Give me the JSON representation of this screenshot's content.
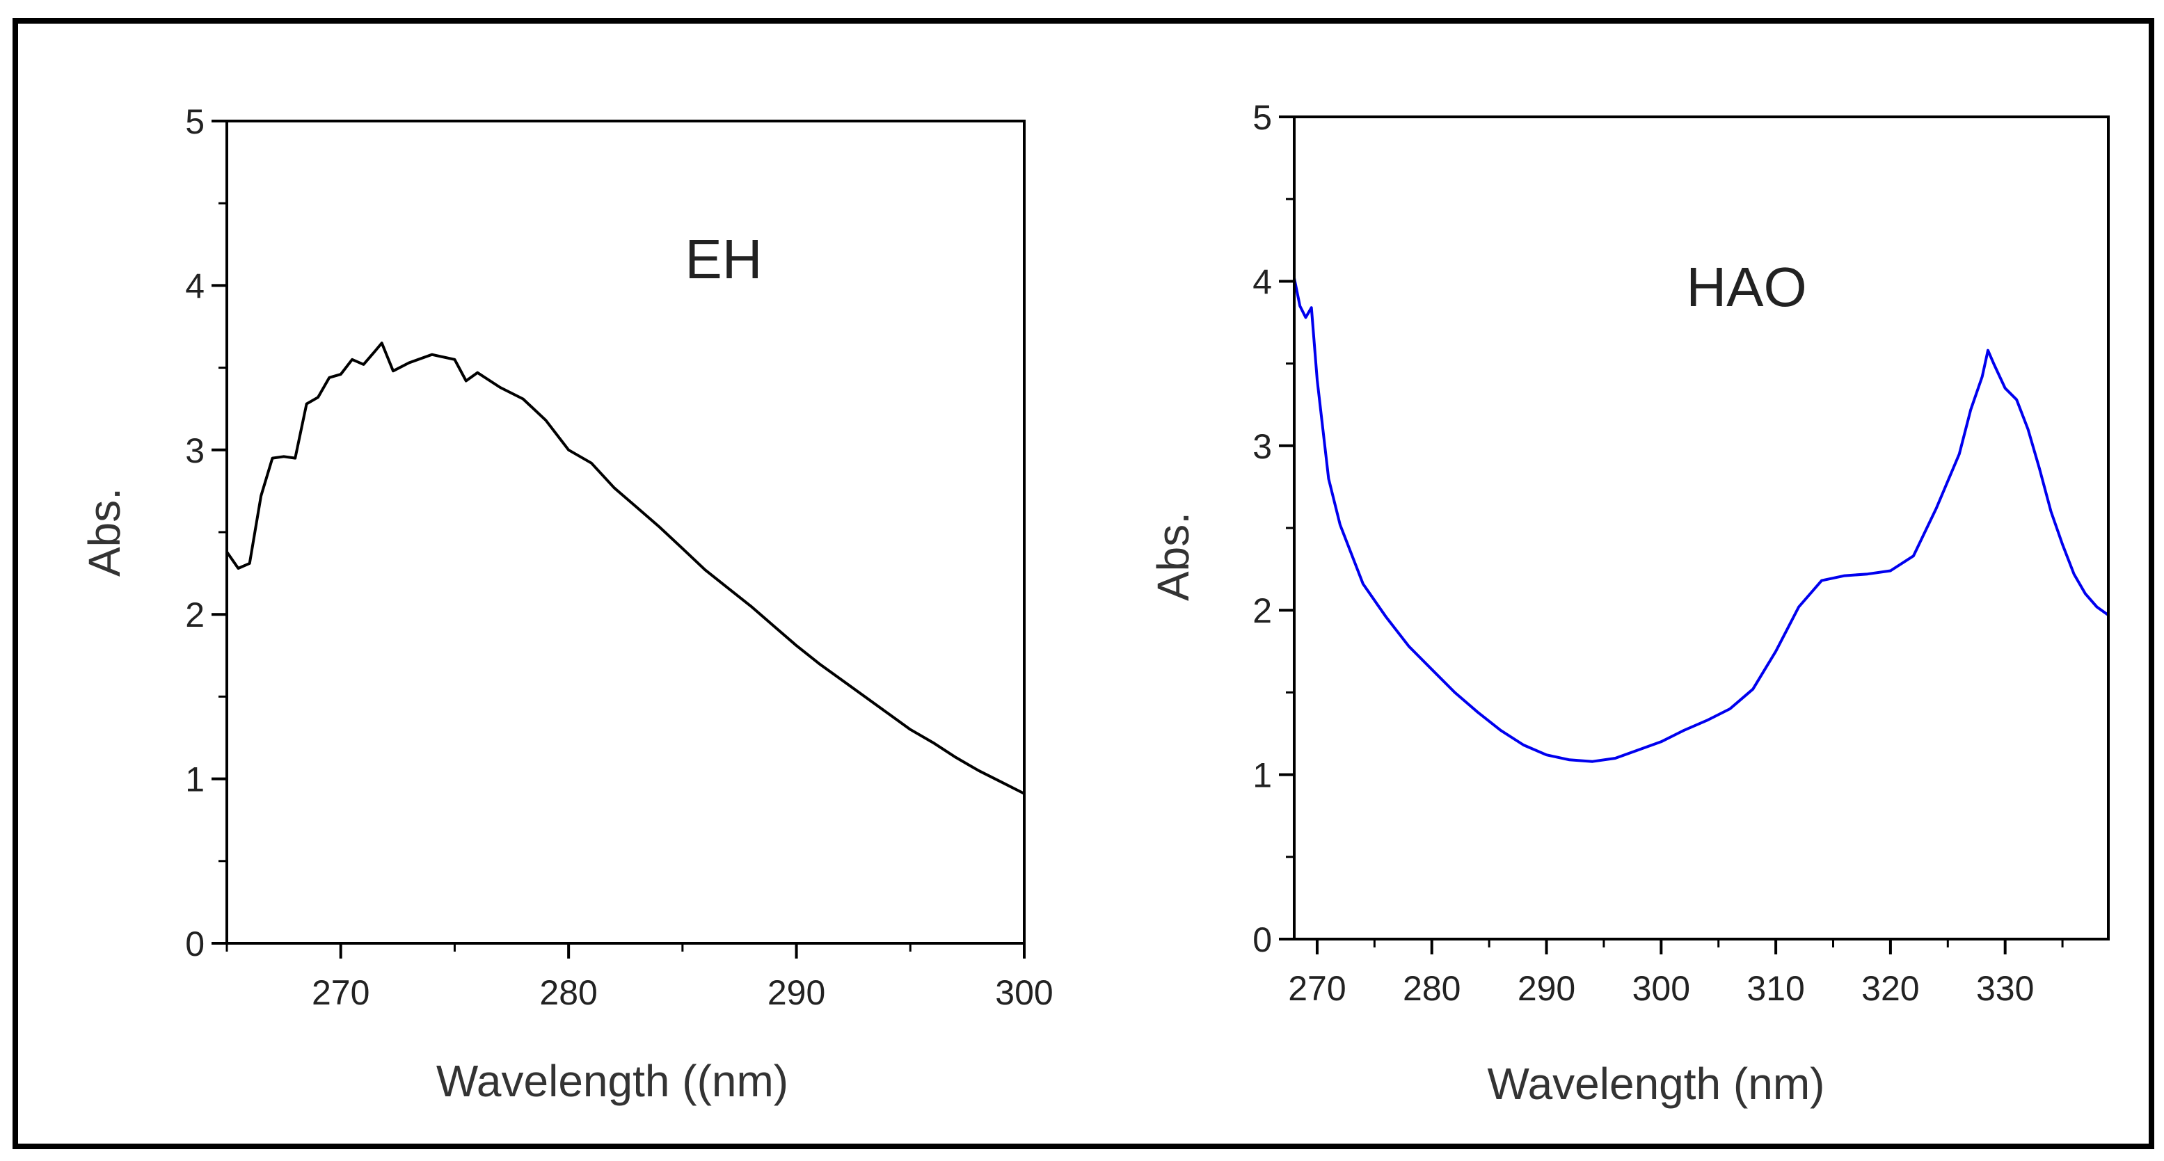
{
  "chart_data": [
    {
      "type": "line",
      "title": "EH",
      "xlabel": "Wavelength ((nm)",
      "ylabel": "Abs.",
      "xlim": [
        265,
        300
      ],
      "ylim": [
        0,
        5
      ],
      "xticks": [
        270,
        280,
        290,
        300
      ],
      "yticks": [
        0,
        1,
        2,
        3,
        4,
        5
      ],
      "series": [
        {
          "name": "EH",
          "color": "#000000",
          "x": [
            265,
            265.5,
            266,
            266.5,
            267,
            267.5,
            268,
            268.5,
            269,
            269.5,
            270,
            270.5,
            271,
            271.5,
            271.8,
            272.3,
            273,
            274,
            275,
            275.5,
            276,
            277,
            278,
            279,
            280,
            281,
            282,
            283,
            284,
            285,
            286,
            287,
            288,
            289,
            290,
            291,
            292,
            293,
            294,
            295,
            296,
            297,
            298,
            299,
            300
          ],
          "y": [
            2.38,
            2.28,
            2.31,
            2.72,
            2.95,
            2.96,
            2.95,
            3.28,
            3.32,
            3.44,
            3.46,
            3.55,
            3.52,
            3.6,
            3.65,
            3.48,
            3.53,
            3.58,
            3.55,
            3.42,
            3.47,
            3.38,
            3.31,
            3.18,
            3.0,
            2.92,
            2.77,
            2.65,
            2.53,
            2.4,
            2.27,
            2.16,
            2.05,
            1.93,
            1.81,
            1.7,
            1.6,
            1.5,
            1.4,
            1.3,
            1.22,
            1.13,
            1.05,
            0.98,
            0.91
          ]
        }
      ]
    },
    {
      "type": "line",
      "title": "HAO",
      "xlabel": "Wavelength  (nm)",
      "ylabel": "Abs.",
      "xlim": [
        268,
        339
      ],
      "ylim": [
        0,
        5
      ],
      "xticks": [
        270,
        280,
        290,
        300,
        310,
        320,
        330
      ],
      "yticks": [
        0,
        1,
        2,
        3,
        4,
        5
      ],
      "series": [
        {
          "name": "HAO",
          "color": "#0000ee",
          "x": [
            268,
            268.5,
            269,
            269.5,
            270,
            271,
            272,
            274,
            276,
            278,
            280,
            282,
            284,
            286,
            288,
            290,
            292,
            294,
            296,
            298,
            300,
            302,
            304,
            306,
            308,
            310,
            312,
            314,
            316,
            318,
            320,
            322,
            324,
            326,
            327,
            328,
            328.5,
            329,
            330,
            331,
            332,
            333,
            334,
            335,
            336,
            337,
            338,
            339
          ],
          "y": [
            4.02,
            3.85,
            3.78,
            3.84,
            3.4,
            2.8,
            2.52,
            2.16,
            1.96,
            1.78,
            1.64,
            1.5,
            1.38,
            1.27,
            1.18,
            1.12,
            1.09,
            1.08,
            1.1,
            1.15,
            1.2,
            1.27,
            1.33,
            1.4,
            1.52,
            1.75,
            2.02,
            2.18,
            2.21,
            2.22,
            2.24,
            2.33,
            2.62,
            2.95,
            3.22,
            3.42,
            3.58,
            3.5,
            3.35,
            3.28,
            3.1,
            2.86,
            2.6,
            2.4,
            2.22,
            2.1,
            2.02,
            1.97
          ]
        }
      ]
    }
  ]
}
